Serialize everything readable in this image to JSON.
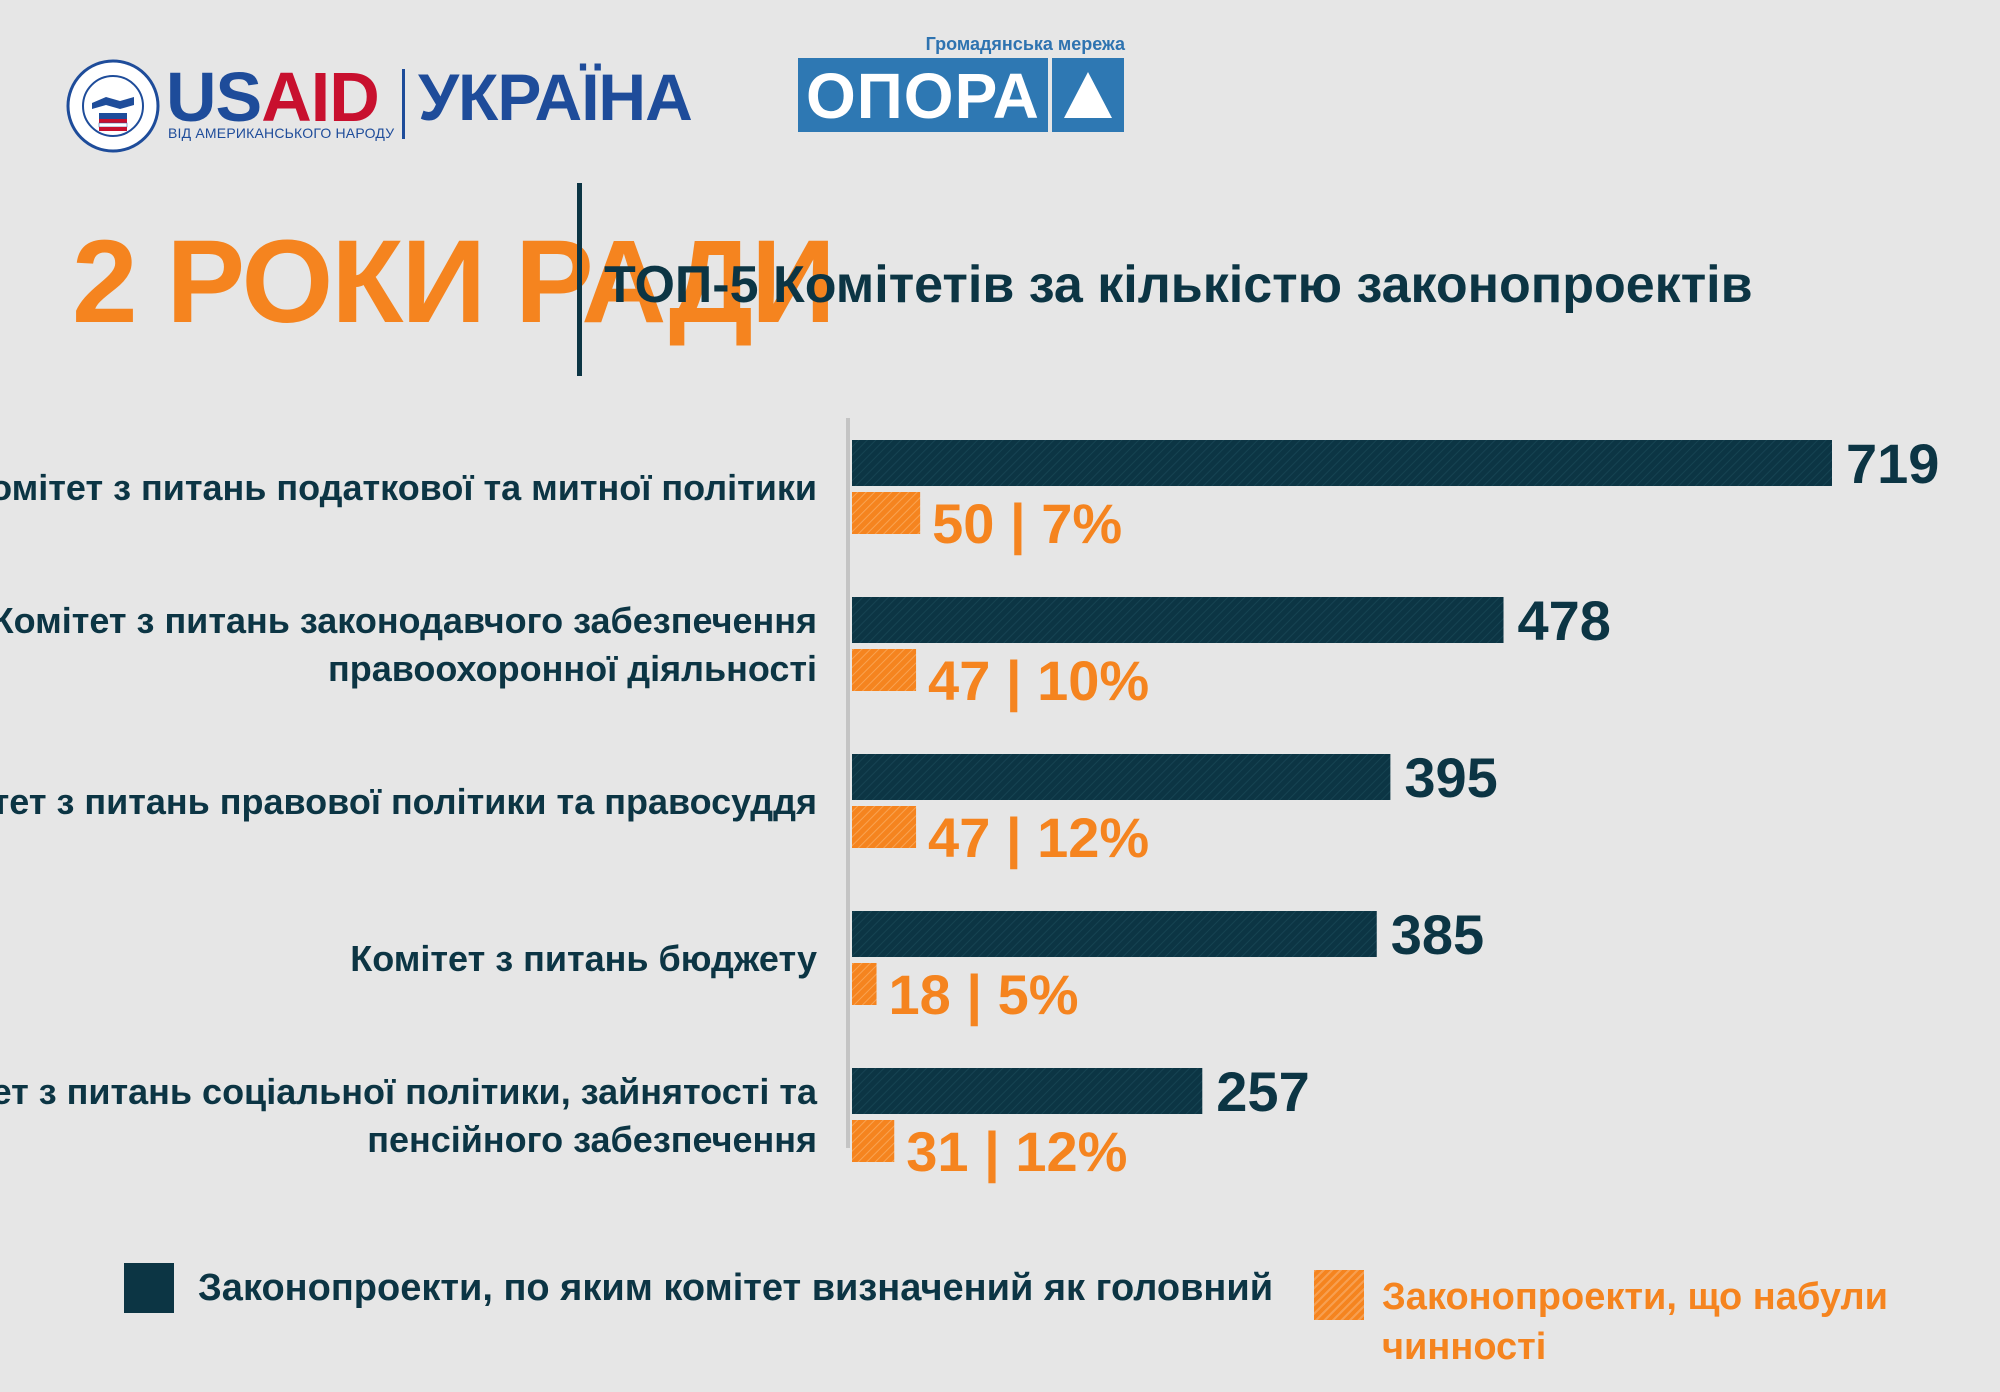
{
  "header": {
    "usaid": {
      "seal_text": "UNITED STATES AGENCY INTERNATIONAL DEVELOPMENT USAID",
      "word_us": "US",
      "word_aid": "AID",
      "tagline": "ВІД АМЕРИКАНСЬКОГО НАРОДУ",
      "country": "УКРАЇНА"
    },
    "opora": {
      "tagline": "Громадянська мережа",
      "name": "ОПОРА"
    }
  },
  "title": {
    "main": "2 РОКИ РАДИ",
    "sub": "ТОП-5 Комітетів за кількістю законопроектів"
  },
  "colors": {
    "main_series": "#0c3544",
    "enacted_series": "#f5841f",
    "background": "#e6e6e6"
  },
  "chart_data": {
    "type": "bar",
    "orientation": "horizontal",
    "title": "ТОП-5 Комітетів за кількістю законопроектів",
    "categories": [
      [
        "Комітет з питань податкової та митної політики"
      ],
      [
        "Комітет з питань законодавчого забезпечення",
        "правоохоронної діяльності"
      ],
      [
        "Комітет з питань правової політики та правосуддя"
      ],
      [
        "Комітет з питань бюджету"
      ],
      [
        "Комітет з питань соціальної політики, зайнятості та",
        "пенсійного забезпечення"
      ]
    ],
    "series": [
      {
        "name": "Законопроекти, по яким комітет визначений як головний",
        "values": [
          719,
          478,
          395,
          385,
          257
        ],
        "labels": [
          "719",
          "478",
          "395",
          "385",
          "257"
        ]
      },
      {
        "name": "Законопроекти, що набули чинності",
        "values": [
          50,
          47,
          47,
          18,
          31
        ],
        "labels": [
          "50 | 7%",
          "47 | 10%",
          "47 | 12%",
          "18 | 5%",
          "31 | 12%"
        ]
      }
    ],
    "xlim": [
      0,
      719
    ],
    "legend_position": "bottom"
  },
  "legend": {
    "main_label": "Законопроекти, по яким комітет визначений як головний",
    "enacted_label": "Законопроекти, що набули чинності"
  }
}
